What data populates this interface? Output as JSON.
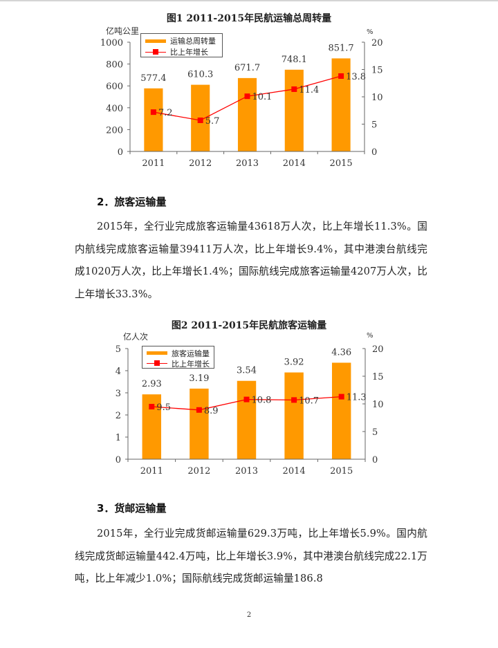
{
  "chart_data": [
    {
      "type": "bar",
      "title": "图1 2011-2015年民航运输总周转量",
      "categories": [
        "2011",
        "2012",
        "2013",
        "2014",
        "2015"
      ],
      "series": [
        {
          "name": "运输总周转量",
          "type": "bar",
          "axis": "left",
          "color": "#ff9900",
          "values": [
            577.4,
            610.3,
            671.7,
            748.1,
            851.7
          ]
        },
        {
          "name": "比上年增长",
          "type": "line",
          "axis": "right",
          "color": "#ff0000",
          "values": [
            7.2,
            5.7,
            10.1,
            11.4,
            13.8
          ]
        }
      ],
      "ylabel": "亿吨公里",
      "y2label": "%",
      "ylim": [
        0,
        1000
      ],
      "yticks": [
        0,
        200,
        400,
        600,
        800,
        1000
      ],
      "y2lim": [
        0,
        20
      ],
      "y2ticks": [
        0,
        5,
        10,
        15,
        20
      ],
      "legend_position": "top-left",
      "grid": false
    },
    {
      "type": "bar",
      "title": "图2 2011-2015年民航旅客运输量",
      "categories": [
        "2011",
        "2012",
        "2013",
        "2014",
        "2015"
      ],
      "series": [
        {
          "name": "旅客运输量",
          "type": "bar",
          "axis": "left",
          "color": "#ff9900",
          "values": [
            2.93,
            3.19,
            3.54,
            3.92,
            4.36
          ]
        },
        {
          "name": "比上年增长",
          "type": "line",
          "axis": "right",
          "color": "#ff0000",
          "values": [
            9.5,
            8.9,
            10.8,
            10.7,
            11.3
          ]
        }
      ],
      "ylabel": "亿人次",
      "y2label": "%",
      "ylim": [
        0,
        5
      ],
      "yticks": [
        0,
        1,
        2,
        3,
        4,
        5
      ],
      "y2lim": [
        0,
        20
      ],
      "y2ticks": [
        0,
        5,
        10,
        15,
        20
      ],
      "legend_position": "top-left",
      "grid": false
    }
  ],
  "chart1": {
    "title": "图1 2011-2015年民航运输总周转量",
    "unit_left": "亿吨公里",
    "unit_right": "%",
    "legend": {
      "bar": "运输总周转量",
      "line": "比上年增长"
    },
    "bar_labels": [
      "577.4",
      "610.3",
      "671.7",
      "748.1",
      "851.7"
    ],
    "line_labels": [
      "7.2",
      "5.7",
      "10.1",
      "11.4",
      "13.8"
    ],
    "left_ticks": [
      "0",
      "200",
      "400",
      "600",
      "800",
      "1000"
    ],
    "right_ticks": [
      "0",
      "5",
      "10",
      "15",
      "20"
    ],
    "categories": [
      "2011",
      "2012",
      "2013",
      "2014",
      "2015"
    ]
  },
  "chart2": {
    "title": "图2 2011-2015年民航旅客运输量",
    "unit_left": "亿人次",
    "unit_right": "%",
    "legend": {
      "bar": "旅客运输量",
      "line": "比上年增长"
    },
    "bar_labels": [
      "2.93",
      "3.19",
      "3.54",
      "3.92",
      "4.36"
    ],
    "line_labels": [
      "9.5",
      "8.9",
      "10.8",
      "10.7",
      "11.3"
    ],
    "left_ticks": [
      "0",
      "1",
      "2",
      "3",
      "4",
      "5"
    ],
    "right_ticks": [
      "0",
      "5",
      "10",
      "15",
      "20"
    ],
    "categories": [
      "2011",
      "2012",
      "2013",
      "2014",
      "2015"
    ]
  },
  "section2": {
    "heading": "2．旅客运输量",
    "paragraph": "2015年，全行业完成旅客运输量43618万人次，比上年增长11.3%。国内航线完成旅客运输量39411万人次，比上年增长9.4%，其中港澳台航线完成1020万人次，比上年增长1.4%；国际航线完成旅客运输量4207万人次，比上年增长33.3%。"
  },
  "section3": {
    "heading": "3．货邮运输量",
    "paragraph": "2015年，全行业完成货邮运输量629.3万吨，比上年增长5.9%。国内航线完成货邮运输量442.4万吨，比上年增长3.9%，其中港澳台航线完成22.1万吨，比上年减少1.0%；国际航线完成货邮运输量186.8"
  },
  "page_number": "2",
  "colors": {
    "bar": "#ff9900",
    "line": "#ff0000",
    "axis": "#666666"
  }
}
